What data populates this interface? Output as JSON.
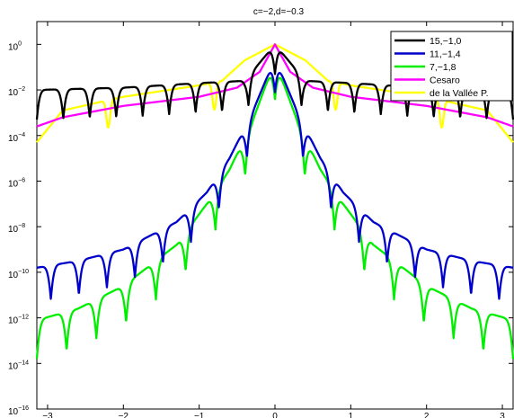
{
  "chart_data": {
    "type": "line",
    "title": "c=−2,d=−0.3",
    "xlabel": "",
    "ylabel": "",
    "xlim": [
      -3.14159,
      3.14159
    ],
    "ylim_log10": [
      -16,
      1
    ],
    "yscale": "log",
    "grid": false,
    "legend_position": "top-right",
    "xticks": [
      -3,
      -2,
      -1,
      0,
      1,
      2,
      3
    ],
    "xtick_labels": [
      "−3",
      "−2",
      "−1",
      "0",
      "1",
      "2",
      "3"
    ],
    "yticks_log10": [
      -16,
      -14,
      -12,
      -10,
      -8,
      -6,
      -4,
      -2,
      0
    ],
    "ytick_labels": [
      "10",
      "10",
      "10",
      "10",
      "10",
      "10",
      "10",
      "10",
      "10"
    ],
    "ytick_exponents": [
      "−16",
      "−14",
      "−12",
      "−10",
      "−8",
      "−6",
      "−4",
      "−2",
      "0"
    ],
    "series": [
      {
        "name": "15,−1,0",
        "color": "#000000",
        "envelope_log10": [
          [
            0,
            0
          ],
          [
            0.4,
            -1.6
          ],
          [
            1.0,
            -1.7
          ],
          [
            2.0,
            -1.9
          ],
          [
            3.14159,
            -2.0
          ]
        ],
        "lobes": 18,
        "dip_depth": 1.3
      },
      {
        "name": "11,−1,4",
        "color": "#0000cc",
        "envelope_log10": [
          [
            0,
            -0.6
          ],
          [
            0.3,
            -3.0
          ],
          [
            0.6,
            -5.0
          ],
          [
            0.9,
            -6.5
          ],
          [
            1.3,
            -7.8
          ],
          [
            2.0,
            -9.0
          ],
          [
            2.6,
            -9.5
          ],
          [
            3.14159,
            -9.8
          ]
        ],
        "lobes": 17,
        "dip_depth": 1.5
      },
      {
        "name": "7,−1,8",
        "color": "#00ee00",
        "envelope_log10": [
          [
            0,
            -0.7
          ],
          [
            0.3,
            -3.4
          ],
          [
            0.6,
            -5.5
          ],
          [
            0.9,
            -7.0
          ],
          [
            1.3,
            -8.8
          ],
          [
            2.0,
            -10.6
          ],
          [
            2.6,
            -11.6
          ],
          [
            3.14159,
            -12.1
          ]
        ],
        "lobes": 16,
        "dip_depth": 1.7
      },
      {
        "name": "Cesaro",
        "color": "#ff00ff",
        "envelope_log10": [
          [
            0,
            0
          ],
          [
            0.2,
            -1.2
          ],
          [
            0.5,
            -1.9
          ],
          [
            1.0,
            -2.3
          ],
          [
            2.0,
            -2.7
          ],
          [
            2.8,
            -3.2
          ],
          [
            3.14159,
            -3.6
          ]
        ],
        "lobes": 0,
        "dip_depth": 0
      },
      {
        "name": "de la Vallée P.",
        "color": "#ffff00",
        "envelope_log10": [
          [
            0,
            0
          ],
          [
            0.4,
            -0.7
          ],
          [
            0.7,
            -1.6
          ],
          [
            1.0,
            -1.8
          ],
          [
            2.0,
            -2.3
          ],
          [
            2.8,
            -2.9
          ],
          [
            3.14159,
            -4.3
          ]
        ],
        "lobes": 0,
        "dip_depth": 0,
        "notches": [
          0.8,
          2.2
        ]
      }
    ]
  }
}
